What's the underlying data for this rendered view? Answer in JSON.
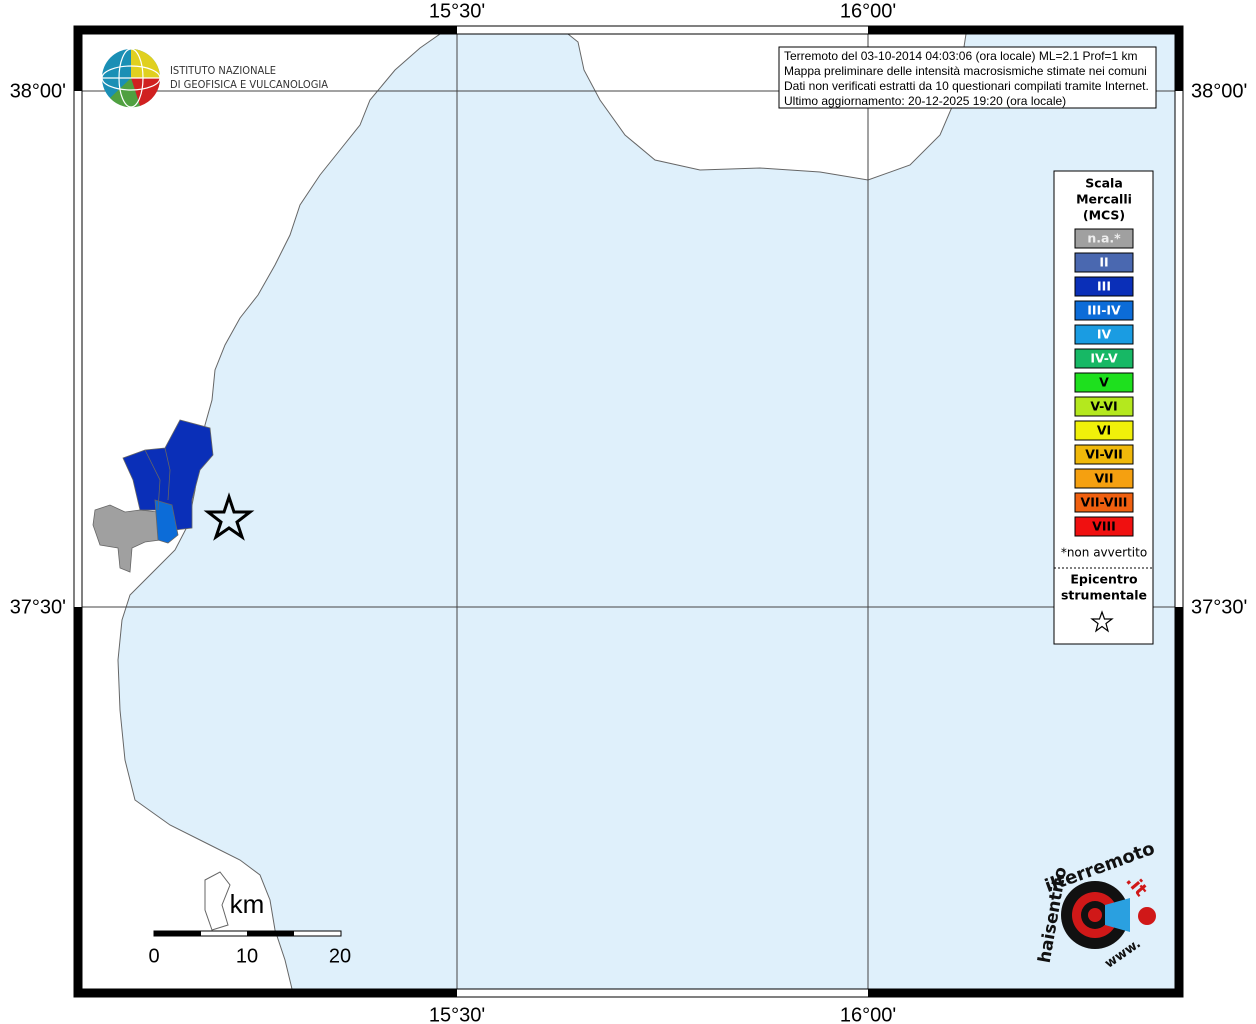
{
  "map": {
    "lon_labels": [
      "15°30'",
      "16°00'"
    ],
    "lat_labels": [
      "38°00'",
      "37°30'"
    ],
    "info": [
      "Terremoto del 03-10-2014 04:03:06 (ora locale) ML=2.1 Prof=1 km",
      "Mappa preliminare delle intensità macrosismiche stimate nei comuni",
      "Dati non verificati estratti da 10 questionari compilati tramite Internet.",
      "Ultimo aggiornamento: 20-12-2025 19:20 (ora locale)"
    ],
    "institute": [
      "ISTITUTO NAZIONALE",
      "DI GEOFISICA E VULCANOLOGIA"
    ],
    "legend": {
      "title": [
        "Scala",
        "Mercalli",
        "(MCS)"
      ],
      "items": [
        {
          "label": "n.a.*",
          "color": "#a0a0a0"
        },
        {
          "label": "II",
          "color": "#4a68b0"
        },
        {
          "label": "III",
          "color": "#0a2fb8"
        },
        {
          "label": "III-IV",
          "color": "#0c6cd8"
        },
        {
          "label": "IV",
          "color": "#1a9ce2"
        },
        {
          "label": "IV-V",
          "color": "#17b865"
        },
        {
          "label": "V",
          "color": "#1ee01e"
        },
        {
          "label": "V-VI",
          "color": "#b4e81e"
        },
        {
          "label": "VI",
          "color": "#f0f00a"
        },
        {
          "label": "VI-VII",
          "color": "#f0b80a"
        },
        {
          "label": "VII",
          "color": "#f5a010"
        },
        {
          "label": "VII-VIII",
          "color": "#f06010"
        },
        {
          "label": "VIII",
          "color": "#f01010"
        }
      ],
      "note": "*non avvertito",
      "epicenter": [
        "Epicentro",
        "strumentale"
      ]
    },
    "scale": {
      "unit": "km",
      "labels": [
        "0",
        "10",
        "20"
      ]
    },
    "logo": [
      "www.",
      "haisentito",
      "ilterremoto",
      ".it"
    ]
  }
}
